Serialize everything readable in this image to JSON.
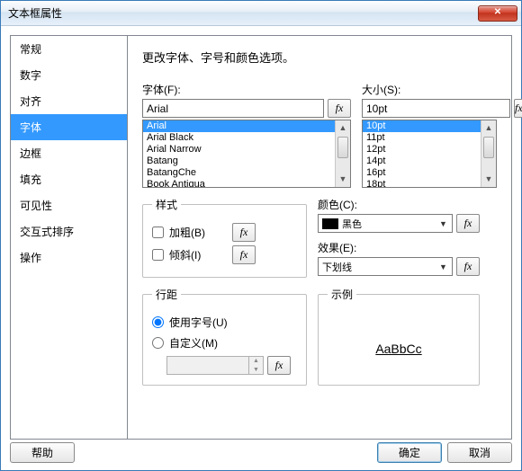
{
  "window": {
    "title": "文本框属性"
  },
  "sidebar": {
    "items": [
      {
        "label": "常规"
      },
      {
        "label": "数字"
      },
      {
        "label": "对齐"
      },
      {
        "label": "字体",
        "selected": true
      },
      {
        "label": "边框"
      },
      {
        "label": "填充"
      },
      {
        "label": "可见性"
      },
      {
        "label": "交互式排序"
      },
      {
        "label": "操作"
      }
    ]
  },
  "heading": "更改字体、字号和颜色选项。",
  "font": {
    "label": "字体(F):",
    "value": "Arial",
    "list": [
      "Arial",
      "Arial Black",
      "Arial Narrow",
      "Batang",
      "BatangChe",
      "Book Antiqua"
    ],
    "selected": "Arial"
  },
  "size": {
    "label": "大小(S):",
    "value": "10pt",
    "list": [
      "10pt",
      "11pt",
      "12pt",
      "14pt",
      "16pt",
      "18pt"
    ],
    "selected": "10pt"
  },
  "style": {
    "legend": "样式",
    "bold_label": "加粗(B)",
    "italic_label": "倾斜(I)",
    "bold": false,
    "italic": false
  },
  "color": {
    "label": "颜色(C):",
    "value": "黑色",
    "swatch": "#000000"
  },
  "effect": {
    "label": "效果(E):",
    "value": "下划线"
  },
  "spacing": {
    "legend": "行距",
    "use_size_label": "使用字号(U)",
    "custom_label": "自定义(M)",
    "mode": "use_size",
    "custom_value": ""
  },
  "sample": {
    "legend": "示例",
    "text": "AaBbCc"
  },
  "buttons": {
    "help": "帮助",
    "ok": "确定",
    "cancel": "取消"
  },
  "fx_glyph": "fx",
  "colors": {
    "selection": "#3399ff",
    "window_border": "#3a7ab8"
  }
}
